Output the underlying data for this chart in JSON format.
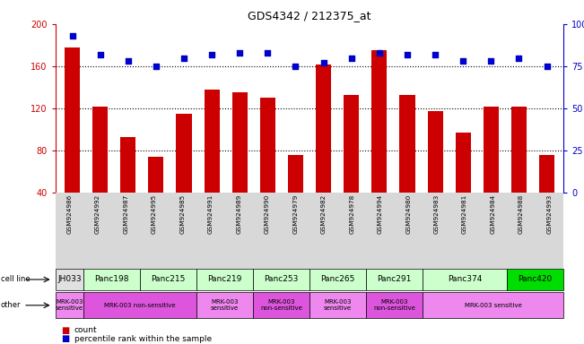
{
  "title": "GDS4342 / 212375_at",
  "samples": [
    "GSM924986",
    "GSM924992",
    "GSM924987",
    "GSM924995",
    "GSM924985",
    "GSM924991",
    "GSM924989",
    "GSM924990",
    "GSM924979",
    "GSM924982",
    "GSM924978",
    "GSM924994",
    "GSM924980",
    "GSM924983",
    "GSM924981",
    "GSM924984",
    "GSM924988",
    "GSM924993"
  ],
  "bar_values": [
    178,
    122,
    93,
    74,
    115,
    138,
    135,
    130,
    76,
    162,
    133,
    175,
    133,
    117,
    97,
    122,
    122,
    76
  ],
  "dot_values": [
    93,
    82,
    78,
    75,
    80,
    82,
    83,
    83,
    75,
    77,
    80,
    83,
    82,
    82,
    78,
    78,
    80,
    75
  ],
  "ylim_left": [
    40,
    200
  ],
  "ylim_right": [
    0,
    100
  ],
  "yticks_left": [
    40,
    80,
    120,
    160,
    200
  ],
  "yticks_right": [
    0,
    25,
    50,
    75,
    100
  ],
  "ytick_labels_right": [
    "0",
    "25",
    "50",
    "75",
    "100%"
  ],
  "bar_color": "#cc0000",
  "dot_color": "#0000cc",
  "cell_lines": [
    {
      "name": "JH033",
      "start": 0,
      "end": 1,
      "color": "#e0e0e0"
    },
    {
      "name": "Panc198",
      "start": 1,
      "end": 3,
      "color": "#ccffcc"
    },
    {
      "name": "Panc215",
      "start": 3,
      "end": 5,
      "color": "#ccffcc"
    },
    {
      "name": "Panc219",
      "start": 5,
      "end": 7,
      "color": "#ccffcc"
    },
    {
      "name": "Panc253",
      "start": 7,
      "end": 9,
      "color": "#ccffcc"
    },
    {
      "name": "Panc265",
      "start": 9,
      "end": 11,
      "color": "#ccffcc"
    },
    {
      "name": "Panc291",
      "start": 11,
      "end": 13,
      "color": "#ccffcc"
    },
    {
      "name": "Panc374",
      "start": 13,
      "end": 16,
      "color": "#ccffcc"
    },
    {
      "name": "Panc420",
      "start": 16,
      "end": 18,
      "color": "#00dd00"
    }
  ],
  "other_groups": [
    {
      "label": "MRK-003\nsensitive",
      "start": 0,
      "end": 1,
      "color": "#ee88ee"
    },
    {
      "label": "MRK-003 non-sensitive",
      "start": 1,
      "end": 5,
      "color": "#dd55dd"
    },
    {
      "label": "MRK-003\nsensitive",
      "start": 5,
      "end": 7,
      "color": "#ee88ee"
    },
    {
      "label": "MRK-003\nnon-sensitive",
      "start": 7,
      "end": 9,
      "color": "#dd55dd"
    },
    {
      "label": "MRK-003\nsensitive",
      "start": 9,
      "end": 11,
      "color": "#ee88ee"
    },
    {
      "label": "MRK-003\nnon-sensitive",
      "start": 11,
      "end": 13,
      "color": "#dd55dd"
    },
    {
      "label": "MRK-003 sensitive",
      "start": 13,
      "end": 18,
      "color": "#ee88ee"
    }
  ],
  "legend_count_color": "#cc0000",
  "legend_dot_color": "#0000cc"
}
